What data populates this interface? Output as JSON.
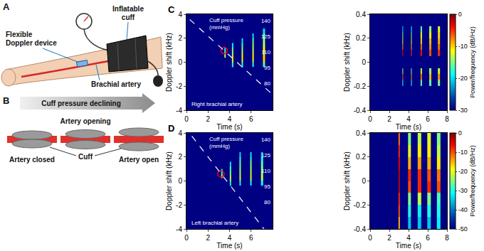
{
  "chart_data": [
    {
      "type": "heatmap",
      "panel": "C",
      "x_label": "Time (s)",
      "y_label": "Doppler shift (kHz)",
      "xlim": [
        0,
        8
      ],
      "xticks": [
        0,
        2,
        4,
        6,
        8
      ],
      "ylim": [
        -4,
        4
      ],
      "yticks": [
        -4,
        -2,
        0,
        2,
        4
      ],
      "y2lim": [
        54,
        146
      ],
      "y2ticks": [
        80,
        95,
        110,
        125,
        140
      ],
      "zlim": [
        -30,
        0
      ],
      "annotations": [
        "Cuff pressure (mmHg)",
        "Right brachial artery"
      ],
      "cells": [
        {
          "x": [
            3.52,
            3.66
          ],
          "y": [
            0.4,
            0.8,
            1.2
          ],
          "z": [
            -14,
            -18
          ]
        },
        {
          "x": [
            4.22,
            4.38
          ],
          "y": [
            -0.4,
            0,
            0.4,
            0.8,
            1.2,
            1.6
          ],
          "z": [
            -18,
            -12,
            -13,
            -15,
            -19
          ]
        },
        {
          "x": [
            5.12,
            5.28
          ],
          "y": [
            -0.4,
            0,
            0.4,
            0.8,
            1.2,
            1.6,
            2.0
          ],
          "z": [
            -18,
            -11,
            -12,
            -14,
            -16,
            -20
          ]
        },
        {
          "x": [
            6.12,
            6.28
          ],
          "y": [
            -0.4,
            0,
            0.4,
            0.8,
            1.2,
            1.6,
            2.0,
            2.4
          ],
          "z": [
            -18,
            -11,
            -11,
            -13,
            -14,
            -16,
            -20
          ]
        },
        {
          "x": [
            7.1,
            7.3
          ],
          "y": [
            -0.4,
            0,
            0.4,
            0.8,
            1.2,
            1.6,
            2.0,
            2.4,
            2.8
          ],
          "z": [
            -17,
            -10,
            -10,
            -11,
            -13,
            -14,
            -16,
            -20
          ]
        }
      ],
      "series": [
        {
          "type": "line",
          "line_style": "dash",
          "axis": "y2",
          "color": "#ffffff",
          "x": [
            0.3,
            8
          ],
          "values": [
            141,
            69
          ]
        },
        {
          "type": "scatter",
          "marker": "circle-open",
          "color": "#ff0000",
          "x": [
            3.5
          ],
          "values": [
            0.98
          ]
        }
      ]
    },
    {
      "type": "heatmap",
      "x_label": "Time (s)",
      "y_label": "Doppler shift (kHz)",
      "xlim": [
        0,
        8
      ],
      "xticks": [
        0,
        2,
        4,
        6,
        8
      ],
      "ylim": [
        -0.4,
        0.4
      ],
      "yticks": [
        -0.4,
        -0.2,
        0,
        0.2,
        0.4
      ],
      "zlim": [
        -30,
        0
      ],
      "zticks": [
        0,
        -10,
        -20,
        -30
      ],
      "colorbar_title": "Power/frequency (dB/Hz)",
      "cells": [
        {
          "x": [
            3.36,
            3.44
          ],
          "y": [
            -0.2,
            -0.15,
            -0.1,
            -0.05,
            0,
            0.05,
            0.1,
            0.15,
            0.2,
            0.25,
            0.3
          ],
          "z": [
            -18,
            -6,
            -14,
            null,
            null,
            -3,
            -8,
            -12,
            -15,
            -20
          ]
        },
        {
          "x": [
            4.26,
            4.36
          ],
          "y": [
            -0.2,
            -0.15,
            -0.1,
            -0.05,
            0,
            0.05,
            0.1,
            0.15,
            0.2,
            0.25,
            0.3
          ],
          "z": [
            -17,
            -8,
            -15,
            null,
            null,
            -5,
            -9,
            -11,
            -14,
            -18
          ]
        },
        {
          "x": [
            5.25,
            5.37
          ],
          "y": [
            -0.2,
            -0.15,
            -0.1,
            -0.05,
            0,
            0.05,
            0.1,
            0.15,
            0.2,
            0.25,
            0.3
          ],
          "z": [
            -16,
            -7,
            -13,
            null,
            null,
            -4,
            -7,
            -10,
            -12,
            -16
          ]
        },
        {
          "x": [
            6.15,
            6.35
          ],
          "y": [
            -0.2,
            -0.15,
            -0.1,
            -0.05,
            0,
            0.05,
            0.1,
            0.15,
            0.2,
            0.25,
            0.3
          ],
          "z": [
            -16,
            -9,
            -14,
            null,
            null,
            -6,
            -8,
            -9,
            -11,
            -14
          ]
        },
        {
          "x": [
            7.05,
            7.3
          ],
          "y": [
            -0.2,
            -0.15,
            -0.1,
            -0.05,
            0,
            0.05,
            0.1,
            0.15,
            0.2,
            0.25,
            0.3
          ],
          "z": [
            -15,
            -8,
            -13,
            null,
            null,
            -5,
            -7,
            -9,
            -10,
            -12
          ]
        }
      ]
    },
    {
      "type": "heatmap",
      "panel": "D",
      "x_label": "Time (s)",
      "y_label": "Doppler shift (kHz)",
      "xlim": [
        0,
        8
      ],
      "xticks": [
        0,
        2,
        4,
        6,
        8
      ],
      "ylim": [
        -4,
        4
      ],
      "yticks": [
        -4,
        -2,
        0,
        2,
        4
      ],
      "y2lim": [
        54,
        146
      ],
      "y2ticks": [
        80,
        95,
        110,
        125,
        140
      ],
      "zlim": [
        -50,
        0
      ],
      "annotations": [
        "Cuff pressure (mmHg)",
        "Left brachial artery"
      ],
      "cells": [
        {
          "x": [
            3.22,
            3.38
          ],
          "y": [
            0.2,
            0.6,
            1.0
          ],
          "z": [
            -25,
            -30
          ]
        },
        {
          "x": [
            4.02,
            4.18
          ],
          "y": [
            -0.4,
            0,
            0.4,
            0.8,
            1.2,
            1.6
          ],
          "z": [
            -32,
            -22,
            -24,
            -27,
            -33
          ]
        },
        {
          "x": [
            4.92,
            5.08
          ],
          "y": [
            -0.4,
            0,
            0.4,
            0.8,
            1.2,
            1.6,
            2.0,
            2.4
          ],
          "z": [
            -32,
            -21,
            -22,
            -24,
            -26,
            -29,
            -34
          ]
        },
        {
          "x": [
            5.92,
            6.08
          ],
          "y": [
            -0.4,
            0,
            0.4,
            0.8,
            1.2,
            1.6,
            2.0,
            2.4
          ],
          "z": [
            -31,
            -21,
            -22,
            -23,
            -25,
            -28,
            -33
          ]
        },
        {
          "x": [
            6.92,
            7.1
          ],
          "y": [
            -0.4,
            0,
            0.4,
            0.8,
            1.2,
            1.6,
            2.0,
            2.4
          ],
          "z": [
            -31,
            -22,
            -23,
            -25,
            -27,
            -30,
            -35
          ]
        }
      ],
      "series": [
        {
          "type": "line",
          "line_style": "dash",
          "axis": "y2",
          "color": "#ffffff",
          "x": [
            0.5,
            7.2
          ],
          "values": [
            143,
            54
          ]
        },
        {
          "type": "scatter",
          "marker": "circle-open",
          "color": "#ff0000",
          "x": [
            3.2
          ],
          "values": [
            0.6
          ]
        }
      ]
    },
    {
      "type": "heatmap",
      "x_label": "Time (s)",
      "y_label": "Doppler shift (kHz)",
      "xlim": [
        0,
        8
      ],
      "xticks": [
        0,
        2,
        4,
        6,
        8
      ],
      "ylim": [
        -0.4,
        0.4
      ],
      "yticks": [
        -0.4,
        -0.2,
        0,
        0.2,
        0.4
      ],
      "zlim": [
        -50,
        0
      ],
      "zticks": [
        0,
        -10,
        -20,
        -30,
        -40,
        -50
      ],
      "colorbar_title": "Power/frequency (dB/Hz)",
      "cells": [
        {
          "x": [
            2.95,
            3.08
          ],
          "y": [
            -0.4,
            -0.3,
            -0.2,
            -0.1,
            0,
            0.1,
            0.2,
            0.3,
            0.4
          ],
          "z": [
            -15,
            -10,
            -8,
            -3,
            -3,
            -5,
            -8,
            -12
          ]
        },
        {
          "x": [
            3.95,
            4.25
          ],
          "y": [
            -0.4,
            -0.3,
            -0.2,
            -0.1,
            0,
            0.1,
            0.2,
            0.3,
            0.4
          ],
          "z": [
            -35,
            -30,
            -25,
            -10,
            -8,
            -15,
            -20,
            -25
          ]
        },
        {
          "x": [
            4.95,
            5.3
          ],
          "y": [
            -0.4,
            -0.3,
            -0.2,
            -0.1,
            0,
            0.1,
            0.2,
            0.3,
            0.4
          ],
          "z": [
            -35,
            -32,
            -22,
            -8,
            -8,
            -14,
            -18,
            -22
          ]
        },
        {
          "x": [
            5.95,
            6.3
          ],
          "y": [
            -0.4,
            -0.3,
            -0.2,
            -0.1,
            0,
            0.1,
            0.2,
            0.3,
            0.4
          ],
          "z": [
            -35,
            -30,
            -25,
            -8,
            -10,
            -15,
            -18,
            -20
          ]
        },
        {
          "x": [
            6.95,
            7.3
          ],
          "y": [
            -0.4,
            -0.3,
            -0.2,
            -0.1,
            0,
            0.1,
            0.2,
            0.3,
            0.4
          ],
          "z": [
            -32,
            -30,
            -28,
            -10,
            -12,
            -18,
            -22,
            -25
          ]
        }
      ]
    }
  ],
  "diagram": {
    "A": {
      "panel": "A",
      "cuff": "Inflatable cuff",
      "device": "Flexible Doppler device",
      "artery": "Brachial artery"
    },
    "B": {
      "panel": "B",
      "banner": "Cuff pressure declining",
      "opening": "Artery opening",
      "closed": "Artery closed",
      "cuff": "Cuff",
      "open": "Artery open"
    }
  }
}
